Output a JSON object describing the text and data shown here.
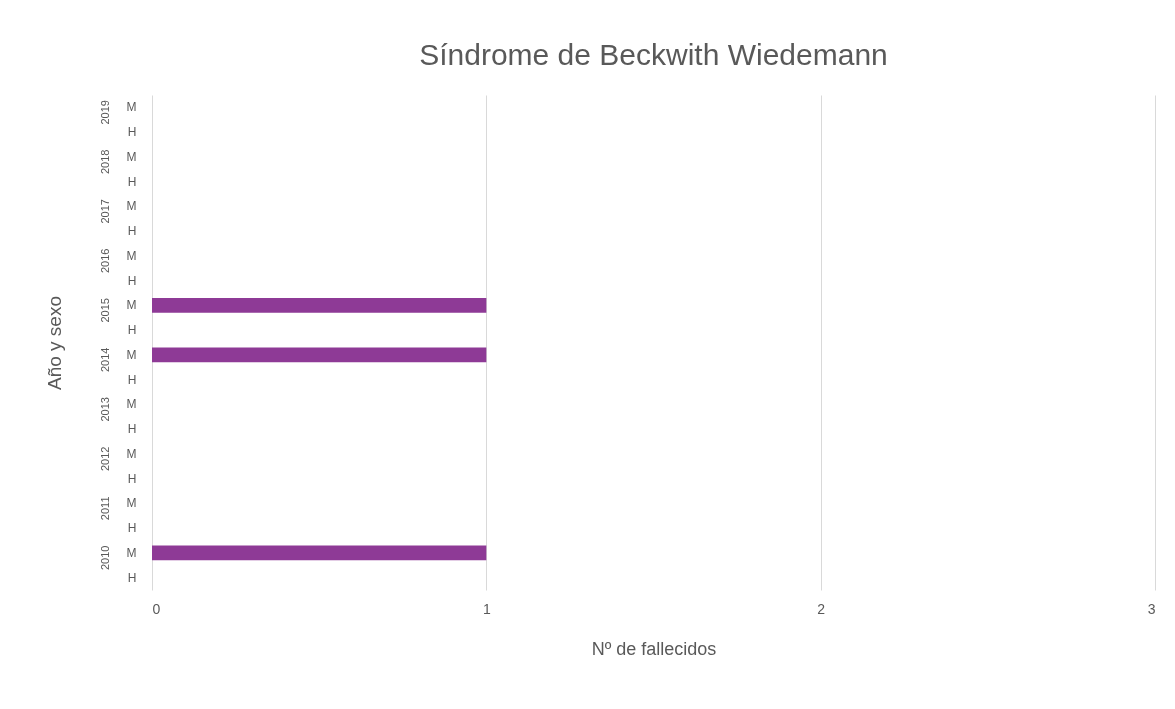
{
  "chart_data": {
    "type": "bar",
    "orientation": "horizontal",
    "title": "Síndrome de Beckwith Wiedemann",
    "xlabel": "Nº de fallecidos",
    "ylabel": "Año y sexo",
    "categories": [
      "M",
      "H",
      "M",
      "H",
      "M",
      "H",
      "M",
      "H",
      "M",
      "H",
      "M",
      "H",
      "M",
      "H",
      "M",
      "H",
      "M",
      "H",
      "M",
      "H"
    ],
    "values": [
      0,
      0,
      0,
      0,
      0,
      0,
      0,
      0,
      1,
      0,
      1,
      0,
      0,
      0,
      0,
      0,
      0,
      0,
      1,
      0
    ],
    "color": "#8e3a96",
    "xlim": [
      0,
      3
    ],
    "xticks": [
      0,
      1,
      2,
      3
    ],
    "grid": "x",
    "annotations": [
      "2019",
      "2018",
      "2017",
      "2016",
      "2015",
      "2014",
      "2013",
      "2012",
      "2011",
      "2010"
    ]
  }
}
